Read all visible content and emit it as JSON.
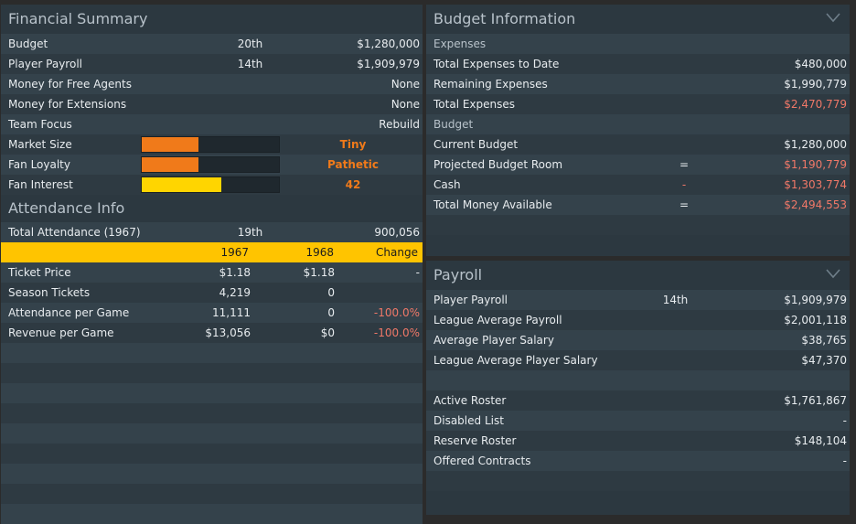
{
  "financial": {
    "title": "Financial Summary",
    "rows": [
      {
        "label": "Budget",
        "rank": "20th",
        "value": "$1,280,000"
      },
      {
        "label": "Player Payroll",
        "rank": "14th",
        "value": "$1,909,979"
      },
      {
        "label": "Money for Free Agents",
        "rank": "",
        "value": "None"
      },
      {
        "label": "Money for Extensions",
        "rank": "",
        "value": "None"
      },
      {
        "label": "Team Focus",
        "rank": "",
        "value": "Rebuild"
      }
    ],
    "meters": [
      {
        "label": "Market Size",
        "level": 0.41,
        "value": "Tiny",
        "fill_color": "#f07a1a"
      },
      {
        "label": "Fan Loyalty",
        "level": 0.41,
        "value": "Pathetic",
        "fill_color": "#f07a1a"
      },
      {
        "label": "Fan Interest",
        "level": 0.58,
        "value": "42",
        "fill_color": "#ffd500"
      }
    ]
  },
  "attendance": {
    "title": "Attendance Info",
    "total": {
      "label": "Total Attendance (1967)",
      "rank": "19th",
      "value": "900,056"
    },
    "header": {
      "col1": "1967",
      "col2": "1968",
      "col3": "Change"
    },
    "rows": [
      {
        "label": "Ticket Price",
        "y1": "$1.18",
        "y2": "$1.18",
        "change": "-",
        "neg": false
      },
      {
        "label": "Season Tickets",
        "y1": "4,219",
        "y2": "0",
        "change": "",
        "neg": false
      },
      {
        "label": "Attendance per Game",
        "y1": "11,111",
        "y2": "0",
        "change": "-100.0%",
        "neg": true
      },
      {
        "label": "Revenue per Game",
        "y1": "$13,056",
        "y2": "$0",
        "change": "-100.0%",
        "neg": true
      }
    ]
  },
  "budget": {
    "title": "Budget Information",
    "expenses_label": "Expenses",
    "expenses": [
      {
        "label": "Total Expenses to Date",
        "op": "",
        "value": "$480,000",
        "neg": false
      },
      {
        "label": "Remaining Expenses",
        "op": "",
        "value": "$1,990,779",
        "neg": false
      },
      {
        "label": "Total Expenses",
        "op": "",
        "value": "$2,470,779",
        "neg": true
      }
    ],
    "budget_label": "Budget",
    "budget_rows": [
      {
        "label": "Current Budget",
        "op": "",
        "value": "$1,280,000",
        "neg": false
      },
      {
        "label": "Projected Budget Room",
        "op": "=",
        "value": "$1,190,779",
        "neg": true
      },
      {
        "label": "Cash",
        "op": "-",
        "value": "$1,303,774",
        "neg": true
      },
      {
        "label": "Total Money Available",
        "op": "=",
        "value": "$2,494,553",
        "neg": true
      }
    ]
  },
  "payroll": {
    "title": "Payroll",
    "rows": [
      {
        "label": "Player Payroll",
        "rank": "14th",
        "value": "$1,909,979"
      },
      {
        "label": "League Average Payroll",
        "rank": "",
        "value": "$2,001,118"
      },
      {
        "label": "Average Player Salary",
        "rank": "",
        "value": "$38,765"
      },
      {
        "label": "League Average Player Salary",
        "rank": "",
        "value": "$47,370"
      }
    ],
    "roster_rows": [
      {
        "label": "Active Roster",
        "value": "$1,761,867"
      },
      {
        "label": "Disabled List",
        "value": "-"
      },
      {
        "label": "Reserve Roster",
        "value": "$148,104"
      },
      {
        "label": "Offered Contracts",
        "value": "-"
      }
    ]
  }
}
